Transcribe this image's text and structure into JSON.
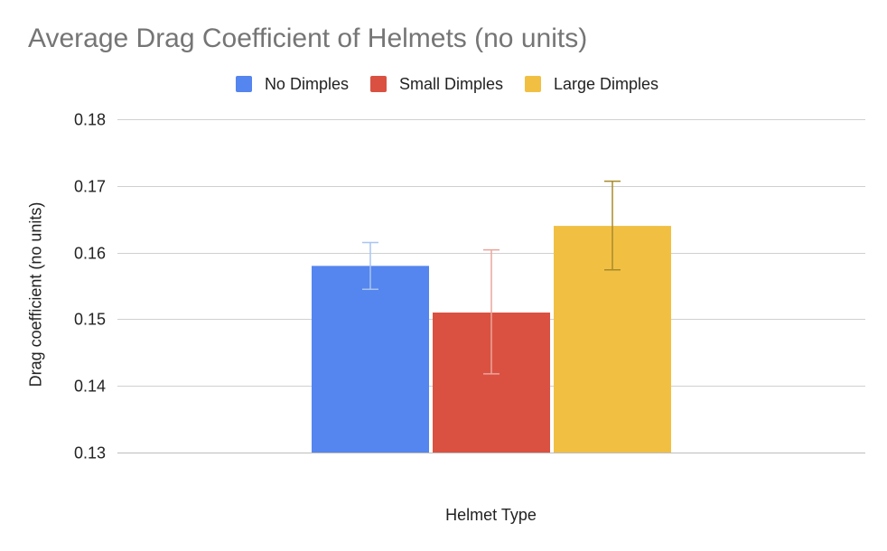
{
  "chart_data": {
    "type": "bar",
    "title": "Average Drag Coefficient of Helmets (no units)",
    "xlabel": "Helmet Type",
    "ylabel": "Drag coefficient (no units)",
    "ylim": [
      0.13,
      0.18
    ],
    "yticks": [
      "0.18",
      "0.17",
      "0.16",
      "0.15",
      "0.14",
      "0.13"
    ],
    "ytick_values": [
      0.18,
      0.17,
      0.16,
      0.15,
      0.14,
      0.13
    ],
    "grid": true,
    "legend_position": "top",
    "categories": [
      ""
    ],
    "series": [
      {
        "name": "No Dimples",
        "values": [
          0.158
        ],
        "error_low": [
          0.1545
        ],
        "error_high": [
          0.1615
        ],
        "color": "#5585EE"
      },
      {
        "name": "Small Dimples",
        "values": [
          0.151
        ],
        "error_low": [
          0.1418
        ],
        "error_high": [
          0.1604
        ],
        "color": "#DA5141"
      },
      {
        "name": "Large Dimples",
        "values": [
          0.164
        ],
        "error_low": [
          0.1574
        ],
        "error_high": [
          0.1707
        ],
        "color": "#F1C043"
      }
    ],
    "error_bar_colors": [
      "#A8C4F3",
      "#E9A59C",
      "#A88A2A"
    ]
  }
}
